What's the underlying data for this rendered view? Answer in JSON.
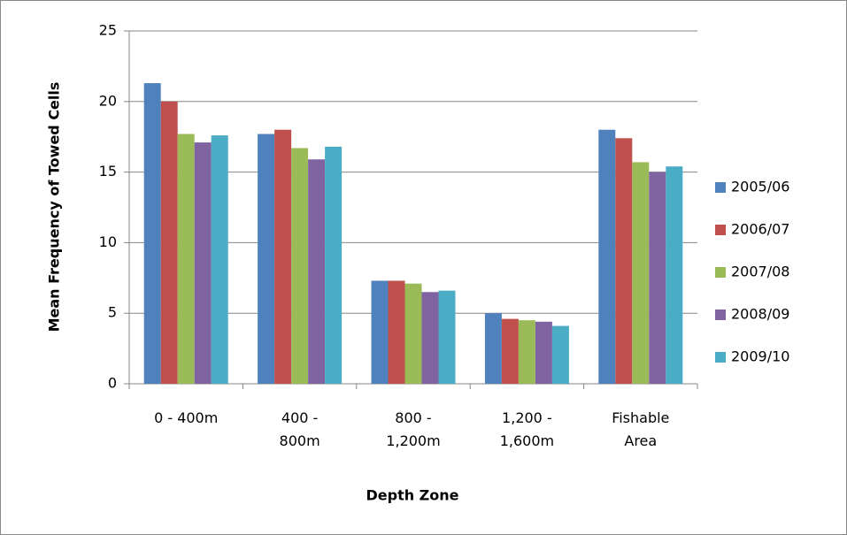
{
  "chart_data": {
    "type": "bar",
    "x_label": "Depth Zone",
    "y_label": "Mean Frequency of Towed Cells",
    "categories": [
      "0 - 400m",
      "400 - 800m",
      "800 - 1,200m",
      "1,200 - 1,600m",
      "Fishable Area"
    ],
    "series": [
      {
        "name": "2005/06",
        "color": "#4f81bd",
        "values": [
          21.3,
          17.7,
          7.3,
          5.0,
          18.0
        ]
      },
      {
        "name": "2006/07",
        "color": "#c0504d",
        "values": [
          20.0,
          18.0,
          7.3,
          4.6,
          17.4
        ]
      },
      {
        "name": "2007/08",
        "color": "#9bbb59",
        "values": [
          17.7,
          16.7,
          7.1,
          4.5,
          15.7
        ]
      },
      {
        "name": "2008/09",
        "color": "#8064a2",
        "values": [
          17.1,
          15.9,
          6.5,
          4.4,
          15.0
        ]
      },
      {
        "name": "2009/10",
        "color": "#4bacc6",
        "values": [
          17.6,
          16.8,
          6.6,
          4.1,
          15.4
        ]
      }
    ],
    "ylim": [
      0,
      25
    ],
    "yticks": [
      0,
      5,
      10,
      15,
      20,
      25
    ],
    "grid": true,
    "legend": "right"
  }
}
